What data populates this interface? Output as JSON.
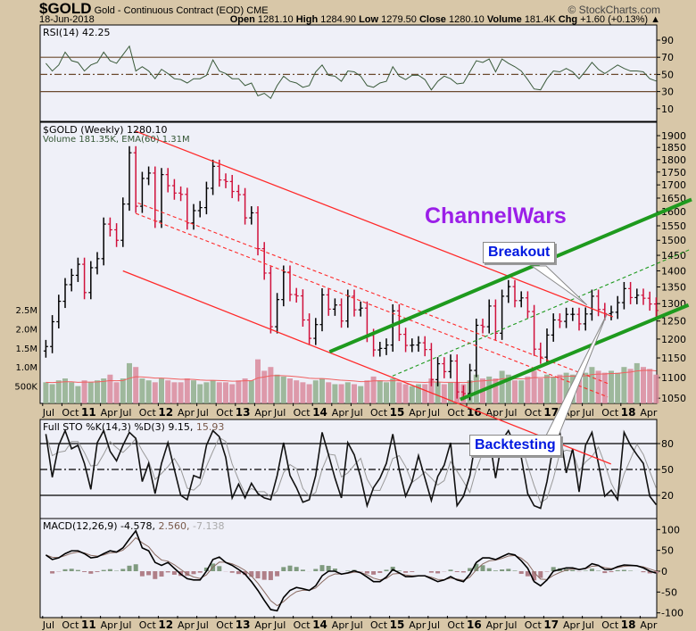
{
  "header": {
    "symbol": "$GOLD",
    "name": "Gold - Continuous Contract (EOD)",
    "exchange": "CME",
    "brand": "© StockCharts.com",
    "date": "18-Jun-2018",
    "open_label": "Open",
    "open": "1281.10",
    "high_label": "High",
    "high": "1284.90",
    "low_label": "Low",
    "low": "1279.50",
    "close_label": "Close",
    "close": "1280.10",
    "volume_label": "Volume",
    "volume": "181.4K",
    "chg_label": "Chg",
    "chg": "+1.60 (+0.13%)",
    "chg_arrow": "▲"
  },
  "legends": {
    "rsi": "RSI(14) 42.25",
    "price": "$GOLD (Weekly) 1280.10",
    "volume": "Volume 181.35K, EMA(60) 1.31M",
    "sto_main": "Full STO %K(14,3) %D(3) 9.15,",
    "sto_d": " 15.93",
    "macd_main": "MACD(12,26,9) -4.578,",
    "macd_signal": " 2.560,",
    "macd_hist": " -7.138"
  },
  "annotations": {
    "watermark": "ChannelWars",
    "breakout": {
      "text": "Breakout",
      "tip": [
        "2017-07-23",
        1296
      ]
    },
    "backtesting": {
      "text": "Backtesting",
      "tip": [
        "2017-10-26",
        1270
      ]
    }
  },
  "colors": {
    "up": "#000000",
    "down": "#d0103a",
    "vol_up": "#8fae8c",
    "vol_down": "#d98a9c",
    "channel_down": "#ff2a2a",
    "channel_up": "#1e9a1e",
    "watermark": "#9b1fe8",
    "callout_text": "#0018e0"
  },
  "chart_data": {
    "type": "line",
    "price_scale": "log",
    "dates": [
      "2010-07",
      "2010-08",
      "2010-09",
      "2010-10",
      "2010-11",
      "2010-12",
      "2011-01",
      "2011-02",
      "2011-03",
      "2011-04",
      "2011-05",
      "2011-06",
      "2011-07",
      "2011-08",
      "2011-09",
      "2011-10",
      "2011-11",
      "2011-12",
      "2012-01",
      "2012-02",
      "2012-03",
      "2012-04",
      "2012-05",
      "2012-06",
      "2012-07",
      "2012-08",
      "2012-09",
      "2012-10",
      "2012-11",
      "2012-12",
      "2013-01",
      "2013-02",
      "2013-03",
      "2013-04",
      "2013-05",
      "2013-06",
      "2013-07",
      "2013-08",
      "2013-09",
      "2013-10",
      "2013-11",
      "2013-12",
      "2014-01",
      "2014-02",
      "2014-03",
      "2014-04",
      "2014-05",
      "2014-06",
      "2014-07",
      "2014-08",
      "2014-09",
      "2014-10",
      "2014-11",
      "2014-12",
      "2015-01",
      "2015-02",
      "2015-03",
      "2015-04",
      "2015-05",
      "2015-06",
      "2015-07",
      "2015-08",
      "2015-09",
      "2015-10",
      "2015-11",
      "2015-12",
      "2016-01",
      "2016-02",
      "2016-03",
      "2016-04",
      "2016-05",
      "2016-06",
      "2016-07",
      "2016-08",
      "2016-09",
      "2016-10",
      "2016-11",
      "2016-12",
      "2017-01",
      "2017-02",
      "2017-03",
      "2017-04",
      "2017-05",
      "2017-06",
      "2017-07",
      "2017-08",
      "2017-09",
      "2017-10",
      "2017-11",
      "2017-12",
      "2018-01",
      "2018-02",
      "2018-03",
      "2018-04",
      "2018-05",
      "2018-06"
    ],
    "close": [
      1180,
      1248,
      1307,
      1357,
      1386,
      1421,
      1333,
      1410,
      1439,
      1556,
      1536,
      1500,
      1628,
      1828,
      1620,
      1725,
      1746,
      1566,
      1740,
      1697,
      1669,
      1664,
      1560,
      1604,
      1615,
      1687,
      1773,
      1719,
      1713,
      1675,
      1663,
      1578,
      1596,
      1472,
      1393,
      1234,
      1312,
      1396,
      1327,
      1323,
      1253,
      1202,
      1240,
      1326,
      1284,
      1296,
      1250,
      1322,
      1282,
      1287,
      1210,
      1171,
      1175,
      1184,
      1279,
      1213,
      1183,
      1184,
      1190,
      1172,
      1095,
      1135,
      1115,
      1142,
      1065,
      1061,
      1118,
      1238,
      1234,
      1293,
      1216,
      1322,
      1351,
      1309,
      1317,
      1277,
      1173,
      1152,
      1211,
      1253,
      1249,
      1269,
      1269,
      1242,
      1270,
      1322,
      1283,
      1271,
      1275,
      1303,
      1345,
      1318,
      1325,
      1316,
      1299,
      1280.1
    ],
    "volume_k": [
      600,
      550,
      650,
      700,
      600,
      500,
      650,
      600,
      650,
      700,
      800,
      600,
      700,
      1100,
      1000,
      700,
      650,
      600,
      700,
      650,
      600,
      600,
      700,
      650,
      550,
      600,
      650,
      600,
      600,
      550,
      650,
      700,
      650,
      1200,
      900,
      1000,
      800,
      750,
      700,
      650,
      600,
      550,
      650,
      700,
      600,
      550,
      550,
      600,
      550,
      500,
      650,
      750,
      650,
      600,
      700,
      600,
      550,
      500,
      550,
      550,
      700,
      600,
      550,
      600,
      600,
      550,
      650,
      800,
      700,
      750,
      700,
      900,
      800,
      650,
      650,
      750,
      900,
      700,
      800,
      750,
      800,
      850,
      800,
      750,
      850,
      1000,
      900,
      850,
      900,
      850,
      1000,
      950,
      1100,
      1000,
      950,
      800
    ],
    "rsi": [
      63,
      54,
      61,
      76,
      66,
      64,
      54,
      61,
      64,
      76,
      66,
      63,
      73,
      83,
      54,
      59,
      54,
      45,
      56,
      51,
      45,
      44,
      40,
      45,
      45,
      49,
      67,
      54,
      51,
      45,
      45,
      37,
      40,
      25,
      28,
      22,
      37,
      48,
      42,
      40,
      35,
      37,
      53,
      61,
      49,
      48,
      42,
      54,
      53,
      48,
      37,
      35,
      40,
      42,
      59,
      48,
      44,
      49,
      49,
      44,
      32,
      42,
      48,
      45,
      39,
      40,
      53,
      66,
      64,
      68,
      53,
      68,
      63,
      59,
      54,
      44,
      33,
      32,
      45,
      54,
      53,
      57,
      53,
      45,
      54,
      64,
      56,
      51,
      56,
      61,
      57,
      54,
      54,
      53,
      45,
      42.25
    ],
    "sto_k": [
      91,
      41,
      78,
      95,
      74,
      78,
      57,
      27,
      81,
      95,
      71,
      60,
      78,
      93,
      86,
      36,
      57,
      22,
      57,
      81,
      50,
      20,
      15,
      43,
      40,
      78,
      95,
      88,
      64,
      17,
      33,
      17,
      34,
      22,
      17,
      15,
      43,
      81,
      43,
      29,
      12,
      15,
      43,
      93,
      67,
      40,
      17,
      81,
      67,
      41,
      8,
      29,
      40,
      57,
      91,
      50,
      19,
      36,
      66,
      40,
      14,
      42,
      55,
      81,
      8,
      19,
      43,
      88,
      78,
      88,
      40,
      84,
      95,
      78,
      64,
      22,
      8,
      5,
      36,
      78,
      93,
      46,
      74,
      24,
      78,
      93,
      57,
      19,
      26,
      15,
      93,
      78,
      67,
      57,
      19,
      9.15
    ],
    "macd": [
      39,
      28,
      32,
      42,
      49,
      49,
      42,
      32,
      34,
      42,
      49,
      46,
      56,
      77,
      97,
      56,
      49,
      21,
      14,
      21,
      7,
      -7,
      -18,
      -21,
      -21,
      0,
      28,
      34,
      21,
      14,
      4,
      -7,
      -25,
      -46,
      -70,
      -92,
      -95,
      -63,
      -46,
      -39,
      -42,
      -46,
      -35,
      -11,
      0,
      0,
      -7,
      -4,
      1,
      -4,
      -14,
      -25,
      -25,
      -14,
      4,
      -4,
      -13,
      -13,
      -11,
      -11,
      -18,
      -25,
      -21,
      -13,
      -21,
      -25,
      -7,
      21,
      32,
      32,
      28,
      35,
      42,
      39,
      25,
      7,
      -25,
      -35,
      -21,
      0,
      4,
      8,
      8,
      4,
      7,
      18,
      14,
      4,
      4,
      11,
      15,
      14,
      13,
      8,
      0,
      -4.578
    ],
    "price_ticks": [
      1050,
      1100,
      1150,
      1200,
      1250,
      1300,
      1350,
      1400,
      1450,
      1500,
      1550,
      1600,
      1650,
      1700,
      1750,
      1800,
      1850,
      1900
    ],
    "volume_ticks": [
      {
        "v": 500,
        "label": "500K"
      },
      {
        "v": 1000,
        "label": "1.0M"
      },
      {
        "v": 1500,
        "label": "1.5M"
      },
      {
        "v": 2000,
        "label": "2.0M"
      },
      {
        "v": 2500,
        "label": "2.5M"
      }
    ],
    "rsi_ticks": [
      90,
      70,
      50,
      30,
      10
    ],
    "rsi_lines": [
      70,
      50,
      30
    ],
    "sto_ticks": [
      80,
      50,
      20
    ],
    "macd_ticks": [
      100,
      50,
      0,
      -50,
      -100
    ],
    "x_ticks": [
      {
        "text": "Jul",
        "date": "2010-07"
      },
      {
        "text": "Oct",
        "date": "2010-10"
      },
      {
        "text": "11",
        "date": "2011-01",
        "year": true
      },
      {
        "text": "Apr",
        "date": "2011-04"
      },
      {
        "text": "Jul",
        "date": "2011-07"
      },
      {
        "text": "Oct",
        "date": "2011-10"
      },
      {
        "text": "12",
        "date": "2012-01",
        "year": true
      },
      {
        "text": "Apr",
        "date": "2012-04"
      },
      {
        "text": "Jul",
        "date": "2012-07"
      },
      {
        "text": "Oct",
        "date": "2012-10"
      },
      {
        "text": "13",
        "date": "2013-01",
        "year": true
      },
      {
        "text": "Apr",
        "date": "2013-04"
      },
      {
        "text": "Jul",
        "date": "2013-07"
      },
      {
        "text": "Oct",
        "date": "2013-10"
      },
      {
        "text": "14",
        "date": "2014-01",
        "year": true
      },
      {
        "text": "Apr",
        "date": "2014-04"
      },
      {
        "text": "Jul",
        "date": "2014-07"
      },
      {
        "text": "Oct",
        "date": "2014-10"
      },
      {
        "text": "15",
        "date": "2015-01",
        "year": true
      },
      {
        "text": "Apr",
        "date": "2015-04"
      },
      {
        "text": "Jul",
        "date": "2015-07"
      },
      {
        "text": "Oct",
        "date": "2015-10"
      },
      {
        "text": "16",
        "date": "2016-01",
        "year": true
      },
      {
        "text": "Apr",
        "date": "2016-04"
      },
      {
        "text": "Jul",
        "date": "2016-07"
      },
      {
        "text": "Oct",
        "date": "2016-10"
      },
      {
        "text": "17",
        "date": "2017-01",
        "year": true
      },
      {
        "text": "Apr",
        "date": "2017-04"
      },
      {
        "text": "Jul",
        "date": "2017-07"
      },
      {
        "text": "Oct",
        "date": "2017-10"
      },
      {
        "text": "18",
        "date": "2018-01",
        "year": true
      },
      {
        "text": "Apr",
        "date": "2018-04"
      }
    ],
    "trendlines": [
      {
        "name": "upper-downtrend",
        "color": "#ff2a2a",
        "style": "solid",
        "width": 1.3,
        "from": [
          "2011-09-16",
          1919
        ],
        "to": [
          "2017-11-24",
          1262
        ]
      },
      {
        "name": "mid-downtrend-1",
        "color": "#ff2a2a",
        "style": "dashed",
        "width": 1.1,
        "from": [
          "2011-09-26",
          1632
        ],
        "to": [
          "2017-11-03",
          1085
        ]
      },
      {
        "name": "mid-downtrend-2",
        "color": "#ff2a2a",
        "style": "dashed",
        "width": 1.1,
        "from": [
          "2011-09-16",
          1594
        ],
        "to": [
          "2017-10-30",
          1053
        ]
      },
      {
        "name": "lower-downtrend",
        "color": "#ff2a2a",
        "style": "solid",
        "width": 1.3,
        "from": [
          "2011-07-16",
          1400
        ],
        "to": [
          "2017-11-15",
          905
        ]
      },
      {
        "name": "upper-uptrend",
        "color": "#1e9a1e",
        "style": "solid",
        "width": 4,
        "from": [
          "2014-03-21",
          1166
        ],
        "to": [
          "2018-12-01",
          1645
        ]
      },
      {
        "name": "lower-uptrend",
        "color": "#1e9a1e",
        "style": "solid",
        "width": 4,
        "from": [
          "2015-12-01",
          1047
        ],
        "to": [
          "2018-11-17",
          1296
        ]
      },
      {
        "name": "mid-uptrend",
        "color": "#1e9a1e",
        "style": "dashed",
        "width": 1.1,
        "from": [
          "2015-01-15",
          1104
        ],
        "to": [
          "2018-11-20",
          1468
        ]
      }
    ]
  }
}
